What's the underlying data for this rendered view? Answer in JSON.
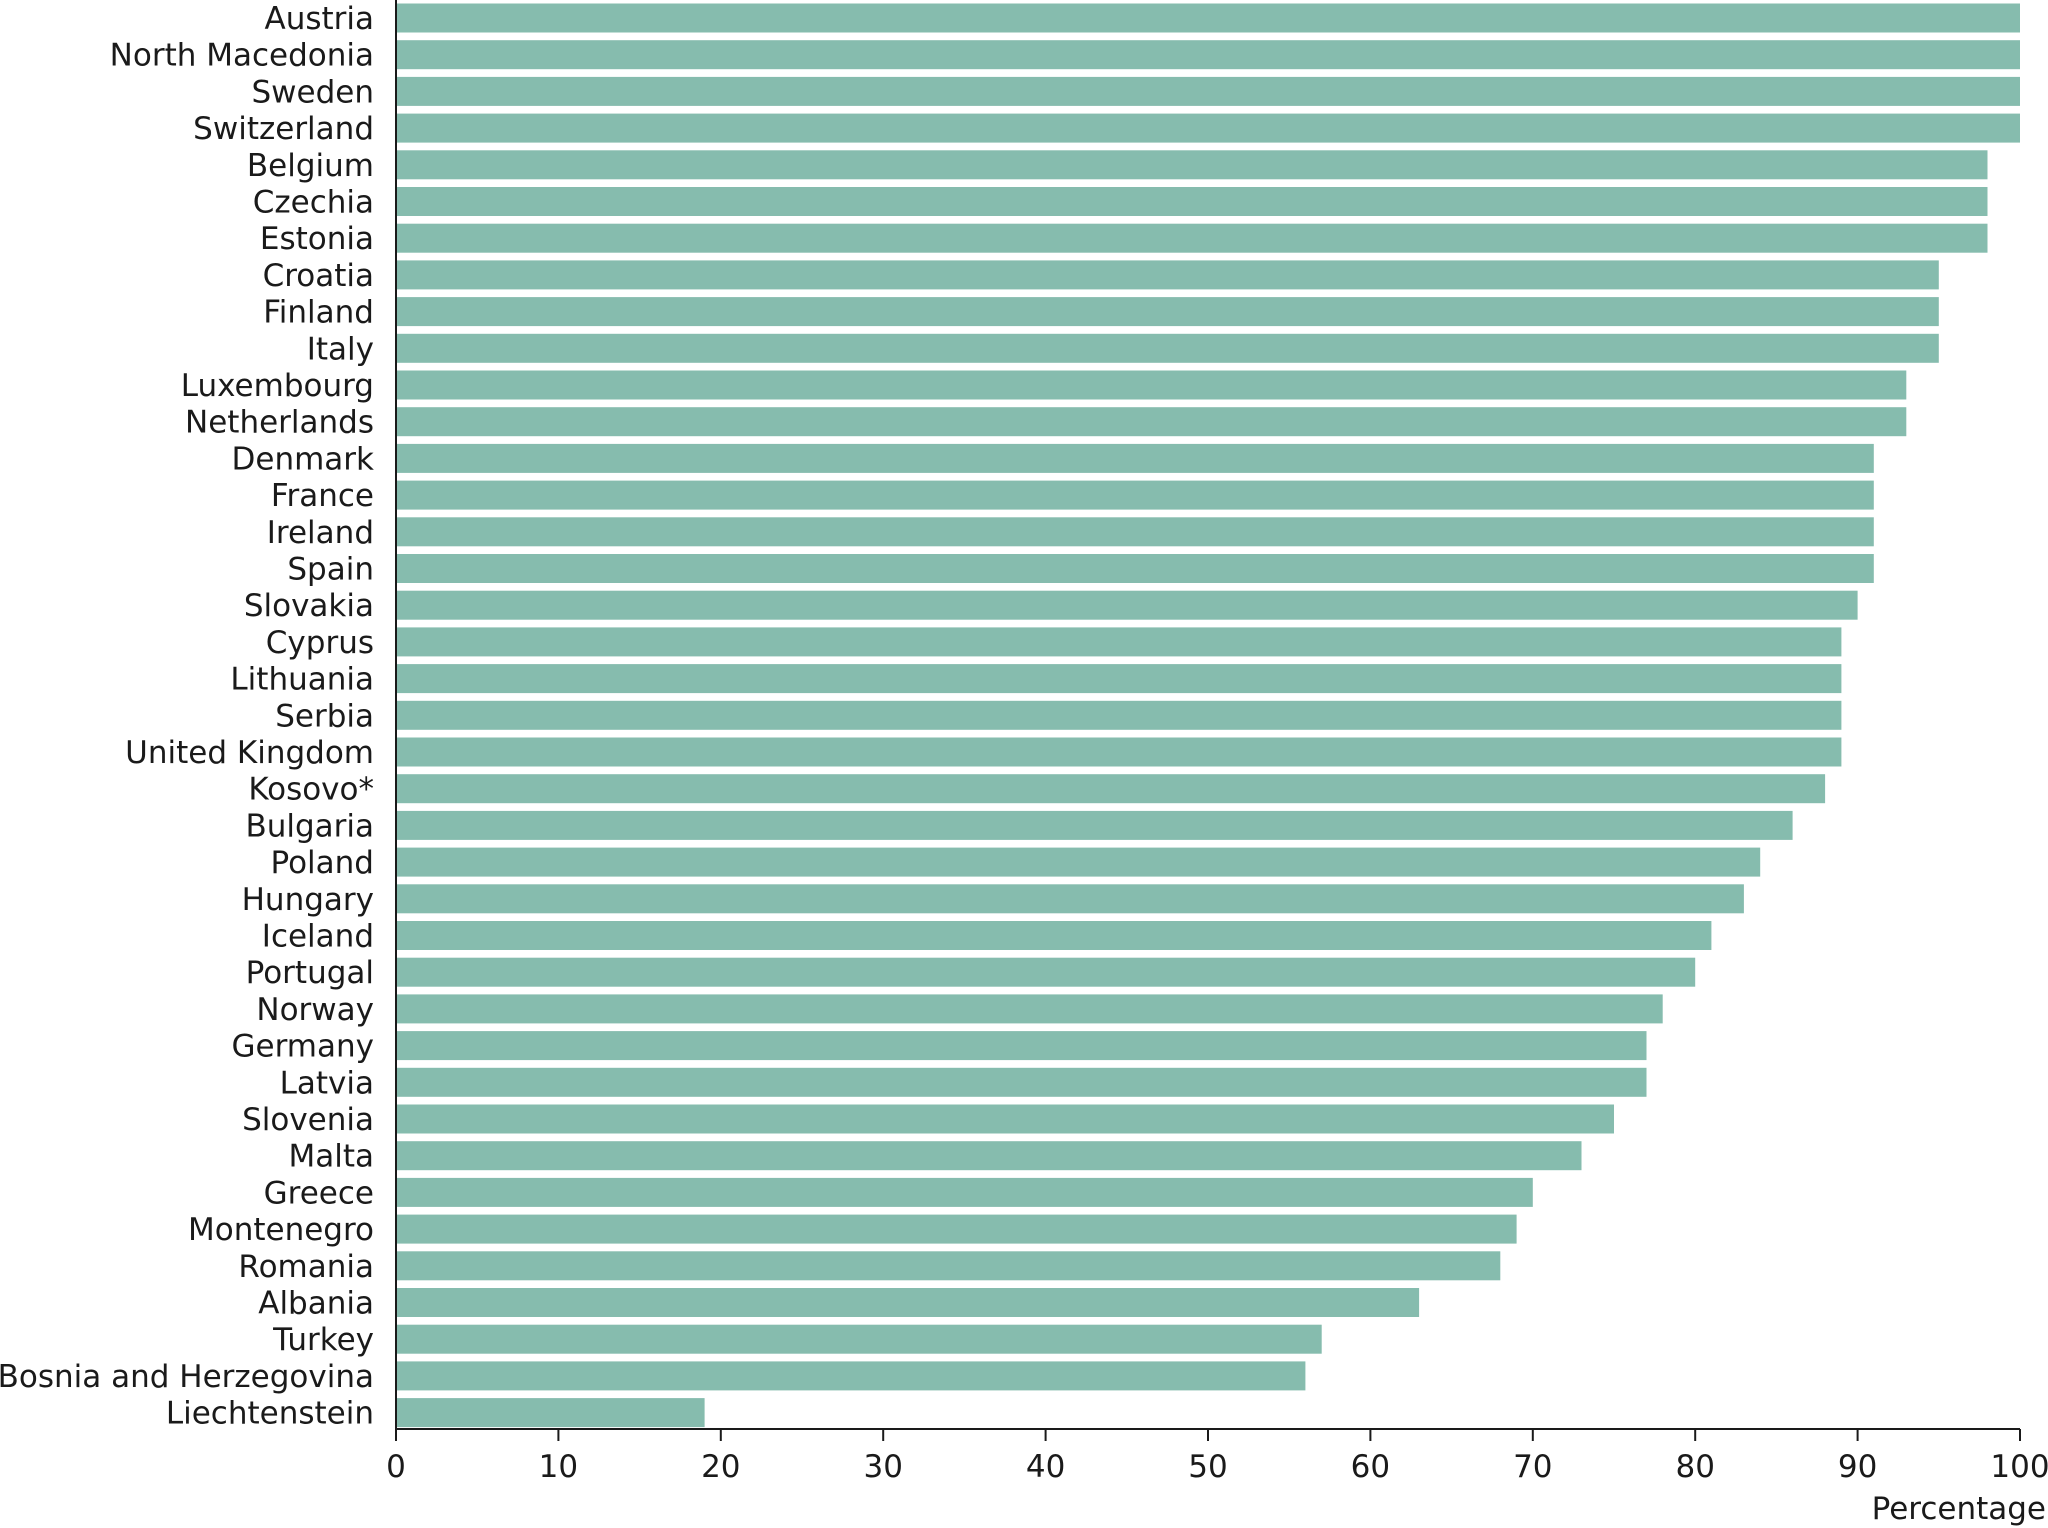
{
  "chart_data": {
    "type": "bar",
    "orientation": "horizontal",
    "categories": [
      "Austria",
      "North Macedonia",
      "Sweden",
      "Switzerland",
      "Belgium",
      "Czechia",
      "Estonia",
      "Croatia",
      "Finland",
      "Italy",
      "Luxembourg",
      "Netherlands",
      "Denmark",
      "France",
      "Ireland",
      "Spain",
      "Slovakia",
      "Cyprus",
      "Lithuania",
      "Serbia",
      "United Kingdom",
      "Kosovo*",
      "Bulgaria",
      "Poland",
      "Hungary",
      "Iceland",
      "Portugal",
      "Norway",
      "Germany",
      "Latvia",
      "Slovenia",
      "Malta",
      "Greece",
      "Montenegro",
      "Romania",
      "Albania",
      "Turkey",
      "Bosnia and Herzegovina",
      "Liechtenstein"
    ],
    "values": [
      100,
      100,
      100,
      100,
      98,
      98,
      98,
      95,
      95,
      95,
      93,
      93,
      91,
      91,
      91,
      91,
      90,
      89,
      89,
      89,
      89,
      88,
      86,
      84,
      83,
      81,
      80,
      78,
      77,
      77,
      75,
      73,
      70,
      69,
      68,
      63,
      57,
      56,
      19
    ],
    "xlabel": "Percentage",
    "ylabel": "",
    "xlim": [
      0,
      100
    ],
    "xticks": [
      "0",
      "10",
      "20",
      "30",
      "40",
      "50",
      "60",
      "70",
      "80",
      "90",
      "100"
    ],
    "grid": false,
    "bar_color": "#86bcae",
    "axis_color": "#1a1a1a"
  }
}
